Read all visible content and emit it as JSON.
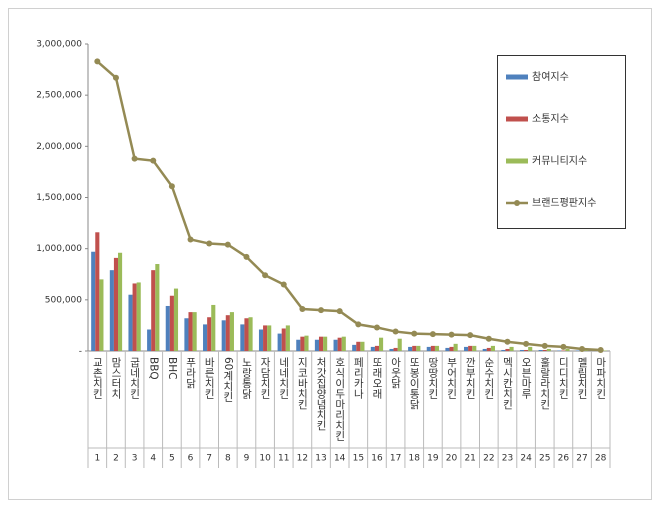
{
  "chart_data": {
    "type": "bar_line",
    "categories": [
      "교촌치킨",
      "맘스터치",
      "굽네치킨",
      "BBQ",
      "BHC",
      "푸라닭",
      "바른치킨",
      "60계치킨",
      "노랑통닭",
      "자담치킨",
      "네네치킨",
      "지코바치킨",
      "처갓집양념치킨",
      "호식이두마리치킨",
      "페리카나",
      "또래오래",
      "아웃닭",
      "또봉이통닭",
      "땅땅치킨",
      "부어치킨",
      "깐부치킨",
      "순수치킨",
      "멕시칸치킨",
      "오븐마루",
      "훌랄라치킨",
      "디디치킨",
      "멜림치킨",
      "마파치킨"
    ],
    "ranks": [
      1,
      2,
      3,
      4,
      5,
      6,
      7,
      8,
      9,
      10,
      11,
      12,
      13,
      14,
      15,
      16,
      17,
      18,
      19,
      20,
      21,
      22,
      23,
      24,
      25,
      26,
      27,
      28
    ],
    "series": [
      {
        "name": "참여지수",
        "type": "bar",
        "color": "#4f81bd",
        "values": [
          970000,
          790000,
          550000,
          210000,
          440000,
          320000,
          260000,
          300000,
          260000,
          210000,
          170000,
          110000,
          110000,
          110000,
          60000,
          40000,
          20000,
          40000,
          40000,
          30000,
          40000,
          20000,
          10000,
          10000,
          10000,
          5000,
          5000,
          2000
        ]
      },
      {
        "name": "소통지수",
        "type": "bar",
        "color": "#c0504d",
        "values": [
          1160000,
          910000,
          660000,
          790000,
          540000,
          380000,
          330000,
          350000,
          320000,
          250000,
          220000,
          140000,
          140000,
          130000,
          90000,
          50000,
          30000,
          50000,
          50000,
          40000,
          50000,
          30000,
          20000,
          10000,
          10000,
          5000,
          5000,
          2000
        ]
      },
      {
        "name": "커뮤니티지수",
        "type": "bar",
        "color": "#9bbb59",
        "values": [
          700000,
          960000,
          670000,
          850000,
          610000,
          380000,
          450000,
          380000,
          330000,
          250000,
          250000,
          150000,
          140000,
          140000,
          90000,
          130000,
          120000,
          50000,
          50000,
          70000,
          50000,
          50000,
          40000,
          40000,
          20000,
          20000,
          10000,
          5000
        ]
      },
      {
        "name": "브랜드평판지수",
        "type": "line",
        "color": "#948a54",
        "values": [
          2830000,
          2670000,
          1880000,
          1860000,
          1610000,
          1090000,
          1050000,
          1040000,
          920000,
          740000,
          650000,
          410000,
          400000,
          390000,
          260000,
          230000,
          190000,
          170000,
          165000,
          160000,
          155000,
          120000,
          90000,
          70000,
          50000,
          40000,
          20000,
          10000
        ]
      }
    ],
    "ylim": [
      0,
      3000000
    ],
    "yticks": [
      {
        "value": 0,
        "label": "-"
      },
      {
        "value": 500000,
        "label": "500,000"
      },
      {
        "value": 1000000,
        "label": "1,000,000"
      },
      {
        "value": 1500000,
        "label": "1,500,000"
      },
      {
        "value": 2000000,
        "label": "2,000,000"
      },
      {
        "value": 2500000,
        "label": "2,500,000"
      },
      {
        "value": 3000000,
        "label": "3,000,000"
      }
    ],
    "grid": false,
    "legend": "upper right"
  }
}
